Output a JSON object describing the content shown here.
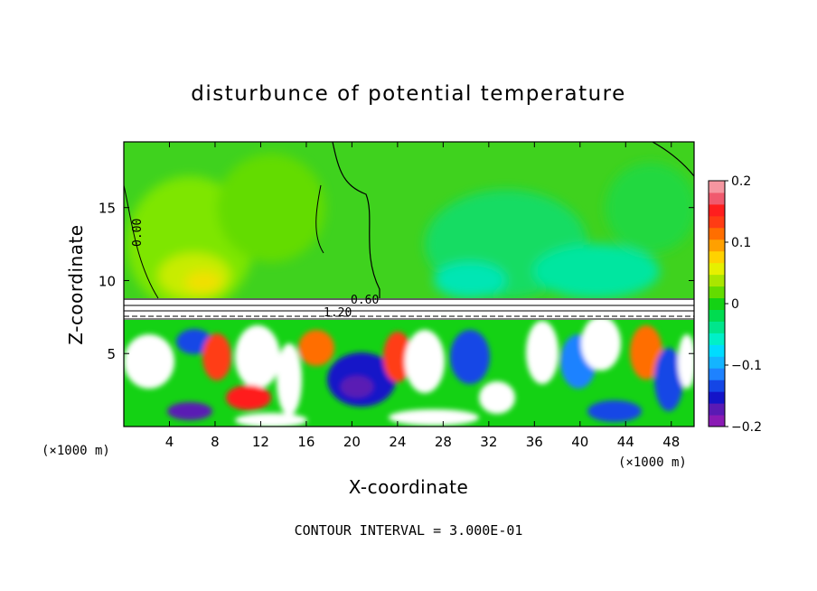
{
  "chart_data": {
    "type": "heatmap",
    "title": "disturbunce of potential temperature",
    "xlabel": "X-coordinate",
    "ylabel": "Z-coordinate",
    "x_unit_label": "(×1000 m)",
    "y_unit_label": "(×1000 m)",
    "xlim": [
      0,
      50
    ],
    "ylim": [
      0,
      19.5
    ],
    "x_ticks": [
      4,
      8,
      12,
      16,
      20,
      24,
      28,
      32,
      36,
      40,
      44,
      48
    ],
    "y_ticks": [
      5,
      10,
      15
    ],
    "colorbar": {
      "range": [
        -0.2,
        0.2
      ],
      "tick_labels": [
        "0.2",
        "0.1",
        "0",
        "−0.1",
        "−0.2"
      ],
      "tick_values": [
        0.2,
        0.1,
        0,
        -0.1,
        -0.2
      ],
      "colors": [
        "#8a1ab4",
        "#5a1ab4",
        "#1414c8",
        "#1446e6",
        "#1e82ff",
        "#14b4ff",
        "#00dcff",
        "#00f0c8",
        "#00e68c",
        "#00dc50",
        "#14d214",
        "#64dc00",
        "#aae600",
        "#e6f000",
        "#ffd200",
        "#ffa000",
        "#ff6e00",
        "#ff3c14",
        "#ff1e1e",
        "#f05a6e",
        "#f596a0"
      ]
    },
    "contour_labels": [
      "0.00",
      "0.60",
      "1.20"
    ],
    "annotation": "CONTOUR INTERVAL = 3.000E-01",
    "grid": false,
    "legend": "colorbar-right"
  }
}
